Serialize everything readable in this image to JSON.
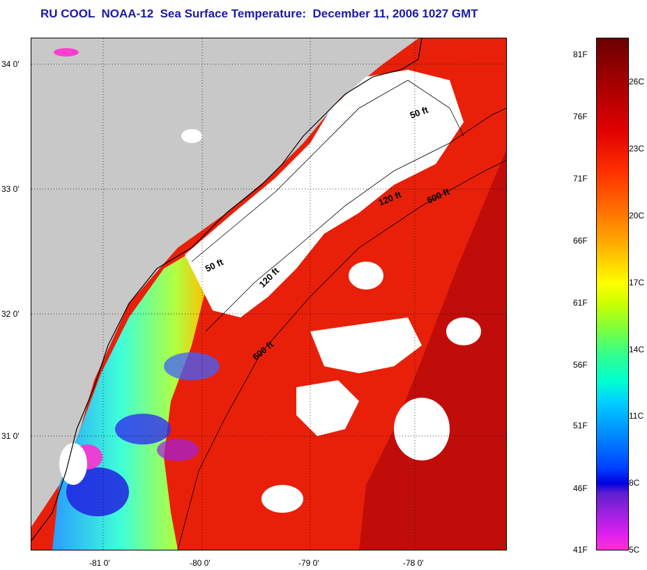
{
  "title": "RU COOL  NOAA-12  Sea Surface Temperature:  December 11, 2006 1027 GMT",
  "map": {
    "lat_labels": [
      "34 0'",
      "33 0'",
      "32 0'",
      "31 0'"
    ],
    "lon_labels": [
      "-81 0'",
      "-80 0'",
      "-79 0'",
      "-78 0'"
    ],
    "contour_labels": [
      "50 ft",
      "120 ft",
      "600 ft",
      "50 ft",
      "120 ft",
      "600 ft"
    ],
    "colors": {
      "land": "#c8c8c8",
      "cloud": "#ffffff",
      "coast_line": "#000000"
    }
  },
  "colorbar": {
    "fahrenheit_labels": [
      "81F",
      "76F",
      "71F",
      "66F",
      "61F",
      "56F",
      "51F",
      "46F",
      "41F"
    ],
    "celsius_labels": [
      "26C",
      "23C",
      "20C",
      "17C",
      "14C",
      "11C",
      "8C",
      "5C"
    ]
  }
}
